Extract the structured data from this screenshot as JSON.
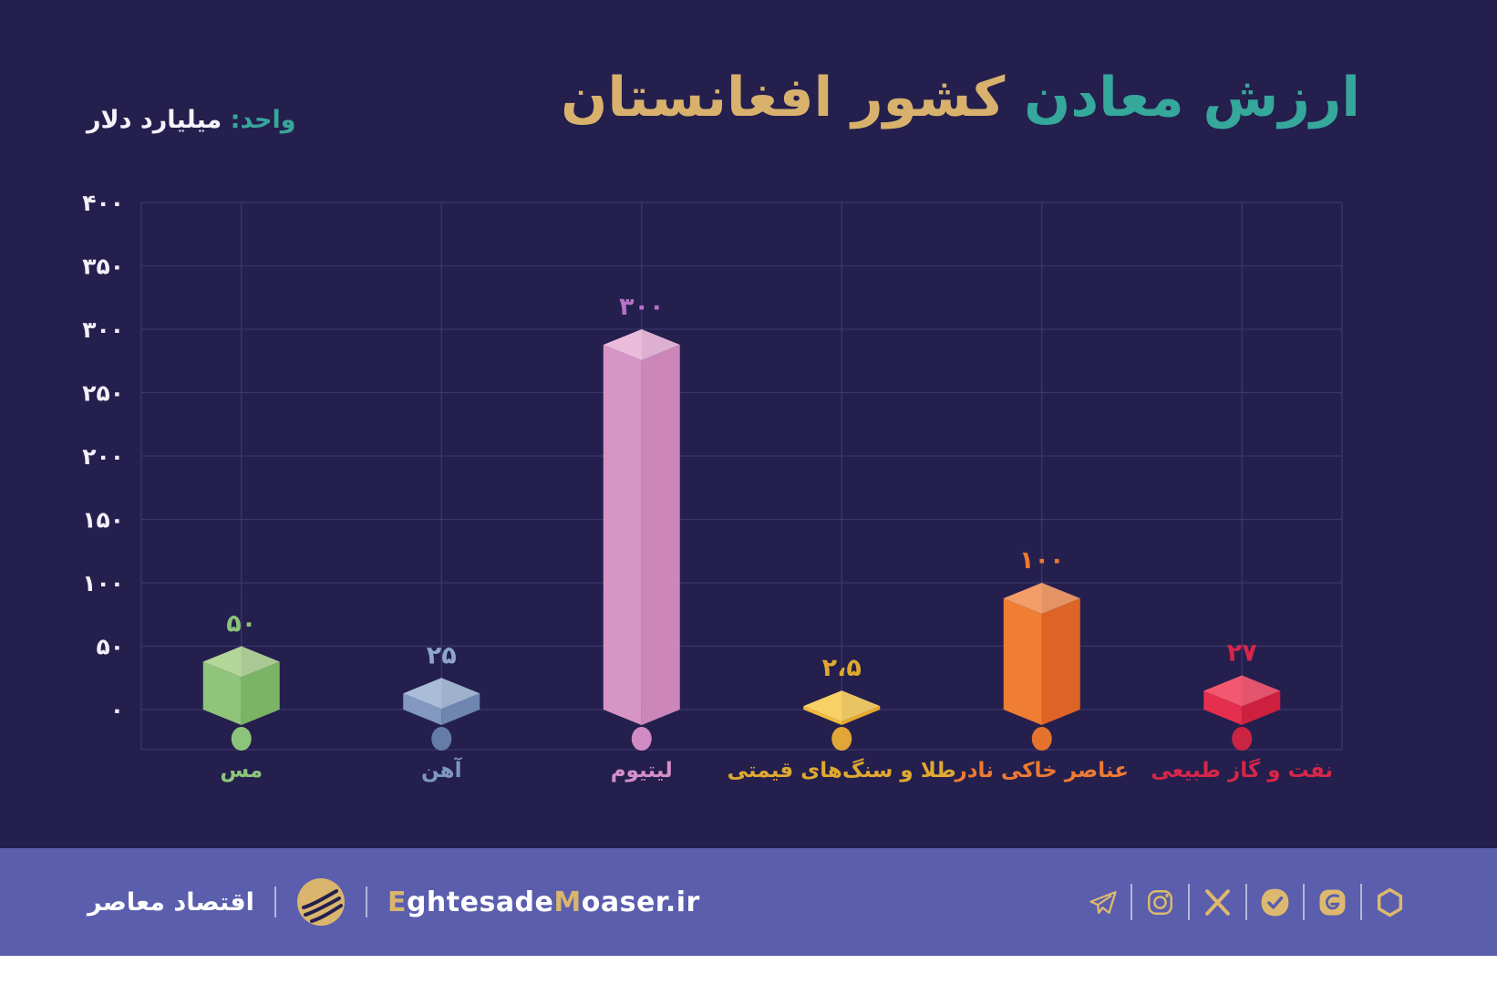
{
  "title": {
    "teal_part": "ارزش معادن",
    "gold_part": "کشور افغانستان",
    "teal_color": "#35A79B",
    "gold_color": "#D8B26C"
  },
  "unit": {
    "label": "واحد:",
    "value": "میلیارد دلار"
  },
  "chart_data": {
    "type": "bar",
    "style": "isometric-3d-columns",
    "title": "ارزش معادن کشور افغانستان",
    "unit": "میلیارد دلار",
    "ylim": [
      0,
      400
    ],
    "grid": true,
    "legend": false,
    "axis_label_color": "#F2EFFA",
    "gridline_color": "#3B366B",
    "y_ticks": [
      {
        "label": "۴۰۰",
        "value": 400
      },
      {
        "label": "۳۵۰",
        "value": 350
      },
      {
        "label": "۳۰۰",
        "value": 300
      },
      {
        "label": "۲۵۰",
        "value": 250
      },
      {
        "label": "۲۰۰",
        "value": 200
      },
      {
        "label": "۱۵۰",
        "value": 150
      },
      {
        "label": "۱۰۰",
        "value": 100
      },
      {
        "label": "۵۰",
        "value": 50
      },
      {
        "label": "۰",
        "value": 0
      }
    ],
    "categories": [
      "مس",
      "آهن",
      "لیتیوم",
      "طلا و سنگ‌های قیمتی",
      "عناصر خاکی نادر",
      "نفت و گاز طبیعی"
    ],
    "values": [
      50,
      25,
      300,
      2.5,
      100,
      27
    ],
    "value_labels": [
      "۵۰",
      "۲۵",
      "۳۰۰",
      "۲،۵",
      "۱۰۰",
      "۲۷"
    ],
    "bars": [
      {
        "category": "مس",
        "value": 50,
        "value_label": "۵۰",
        "top": "#B3D699",
        "left": "#8FC47A",
        "right": "#7BB465",
        "text": "#8CC47A",
        "cat_text": "#8CC47A",
        "dot": "#8CC47A"
      },
      {
        "category": "آهن",
        "value": 25,
        "value_label": "۲۵",
        "top": "#A9BDD9",
        "left": "#8298C0",
        "right": "#6E86B0",
        "text": "#8FA5CB",
        "cat_text": "#7E97C2",
        "dot": "#647CA8"
      },
      {
        "category": "لیتیوم",
        "value": 300,
        "value_label": "۳۰۰",
        "top": "#EBBBDC",
        "left": "#D795C5",
        "right": "#CC86BA",
        "text": "#B672C6",
        "cat_text": "#D38FC8",
        "dot": "#D08BC4"
      },
      {
        "category": "طلا و سنگ‌های قیمتی",
        "value": 2.5,
        "value_label": "۲،۵",
        "top": "#F8D166",
        "left": "#F2BB3B",
        "right": "#E9A929",
        "text": "#DFA830",
        "cat_text": "#DFA830",
        "dot": "#E2A636"
      },
      {
        "category": "عناصر خاکی نادر",
        "value": 100,
        "value_label": "۱۰۰",
        "top": "#F39D69",
        "left": "#EF7D33",
        "right": "#DD6426",
        "text": "#ED7A32",
        "cat_text": "#ED7A32",
        "dot": "#E5722D"
      },
      {
        "category": "نفت و گاز طبیعی",
        "value": 27,
        "value_label": "۲۷",
        "top": "#F25970",
        "left": "#E62E4E",
        "right": "#CF1F3F",
        "text": "#D5274A",
        "cat_text": "#D5274A",
        "dot": "#CB2443"
      }
    ]
  },
  "footer": {
    "brand_fa": "اقتصاد معاصر",
    "site_parts": {
      "p1": "E",
      "p2": "ghtesade",
      "p3": "M",
      "p4": "oaser",
      "p5": ".ir"
    },
    "site_full": "EghtesadeMoaser.ir",
    "social": [
      "telegram",
      "instagram",
      "x",
      "bale",
      "eitaa",
      "rubika"
    ],
    "band_color": "#5A5EAC",
    "icon_color": "#DDB96F"
  }
}
